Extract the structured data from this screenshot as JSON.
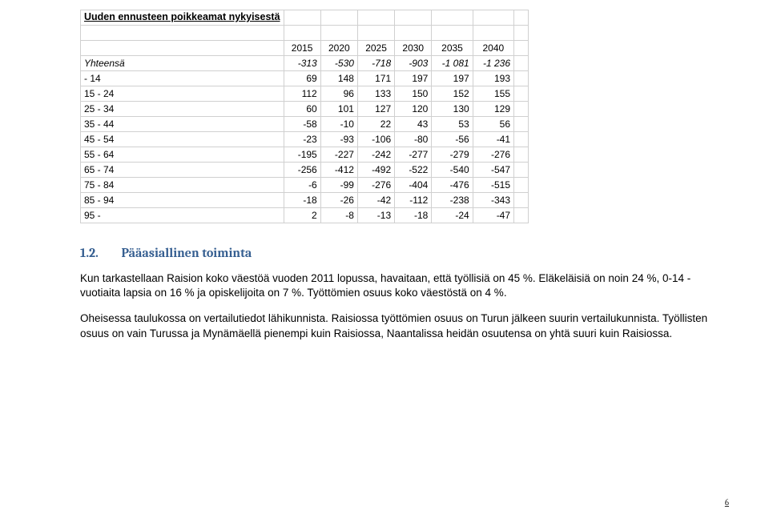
{
  "table": {
    "title": "Uuden ennusteen poikkeamat nykyisestä",
    "years": [
      "2015",
      "2020",
      "2025",
      "2030",
      "2035",
      "2040"
    ],
    "total_label": "Yhteensä",
    "total_values": [
      "-313",
      "-530",
      "-718",
      "-903",
      "-1 081",
      "-1 236"
    ],
    "rows": [
      {
        "label": " - 14",
        "values": [
          "69",
          "148",
          "171",
          "197",
          "197",
          "193"
        ]
      },
      {
        "label": "15 - 24",
        "values": [
          "112",
          "96",
          "133",
          "150",
          "152",
          "155"
        ]
      },
      {
        "label": "25 - 34",
        "values": [
          "60",
          "101",
          "127",
          "120",
          "130",
          "129"
        ]
      },
      {
        "label": "35 - 44",
        "values": [
          "-58",
          "-10",
          "22",
          "43",
          "53",
          "56"
        ]
      },
      {
        "label": "45 - 54",
        "values": [
          "-23",
          "-93",
          "-106",
          "-80",
          "-56",
          "-41"
        ]
      },
      {
        "label": "55 - 64",
        "values": [
          "-195",
          "-227",
          "-242",
          "-277",
          "-279",
          "-276"
        ]
      },
      {
        "label": "65 - 74",
        "values": [
          "-256",
          "-412",
          "-492",
          "-522",
          "-540",
          "-547"
        ]
      },
      {
        "label": "75 - 84",
        "values": [
          "-6",
          "-99",
          "-276",
          "-404",
          "-476",
          "-515"
        ]
      },
      {
        "label": "85 - 94",
        "values": [
          "-18",
          "-26",
          "-42",
          "-112",
          "-238",
          "-343"
        ]
      },
      {
        "label": "95 -",
        "values": [
          "2",
          "-8",
          "-13",
          "-18",
          "-24",
          "-47"
        ]
      }
    ],
    "border_color": "#d0d0d0",
    "font_size": 12
  },
  "section": {
    "number": "1.2.",
    "title": "Pääasiallinen toiminta",
    "title_color": "#365f91",
    "paragraphs": [
      "Kun tarkastellaan Raision koko väestöä vuoden 2011 lopussa, havaitaan, että työllisiä on 45 %. Eläkeläisiä on noin 24 %, 0-14 -vuotiaita lapsia on 16 % ja opiskelijoita on 7 %. Työttömien osuus koko väestöstä on 4 %.",
      "Oheisessa taulukossa on vertailutiedot lähikunnista. Raisiossa työttömien osuus on Turun jälkeen suurin vertailukunnista. Työllisten osuus on vain Turussa ja Mynämäellä pienempi kuin Raisiossa, Naantalissa heidän osuutensa on yhtä suuri kuin Raisiossa."
    ]
  },
  "page_number": "6"
}
